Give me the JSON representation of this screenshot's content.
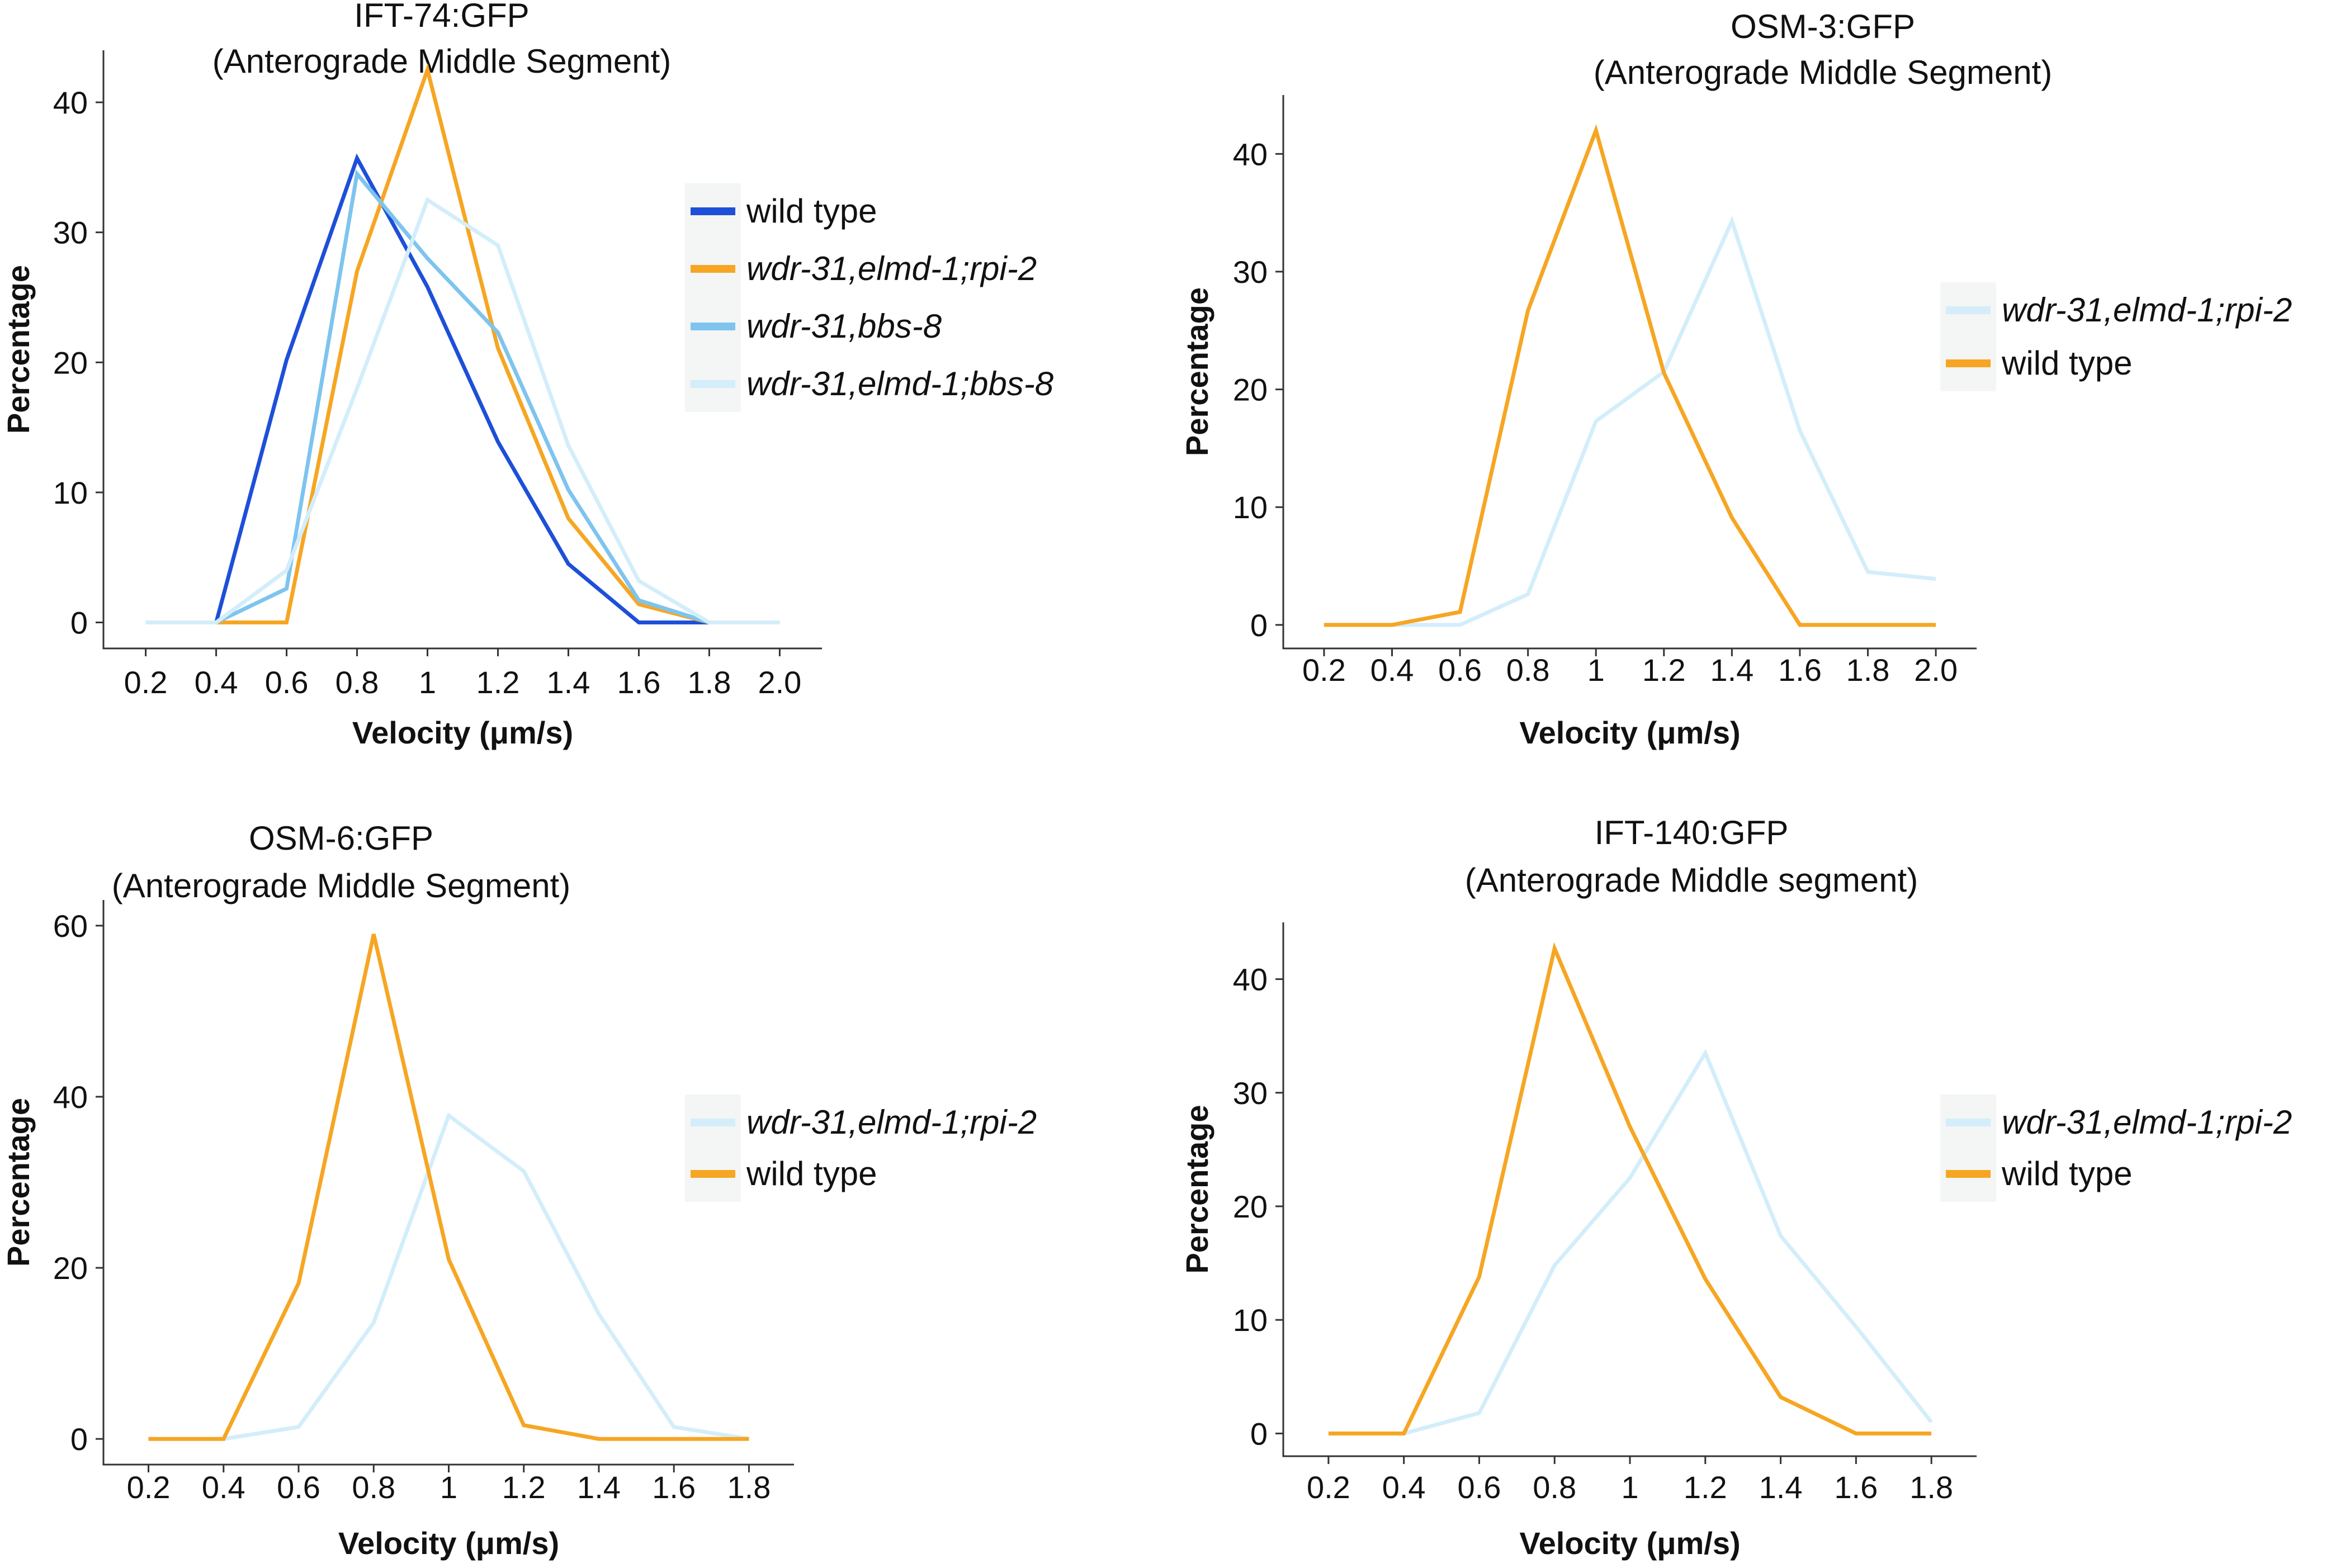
{
  "chart_data": [
    {
      "type": "line",
      "title": "IFT-74:GFP",
      "subtitle": "(Anterograde Middle Segment)",
      "xlabel": "Velocity (μm/s)",
      "ylabel": "Percentage",
      "x_tick_labels": [
        "0.2",
        "0.4",
        "0.6",
        "0.8",
        "1",
        "1.2",
        "1.4",
        "1.6",
        "1.8",
        "2.0"
      ],
      "x": [
        0.2,
        0.4,
        0.6,
        0.8,
        1.0,
        1.2,
        1.4,
        1.6,
        1.8,
        2.0
      ],
      "xlim": [
        0.08,
        2.12
      ],
      "yticks": [
        0,
        10,
        20,
        30,
        40
      ],
      "ylim": [
        -2,
        44
      ],
      "grid": false,
      "legend_position": "right",
      "series": [
        {
          "name": "wild type",
          "color": "#1d4fd8",
          "italic": false,
          "values": [
            0,
            0,
            20.2,
            35.7,
            25.8,
            13.9,
            4.5,
            0,
            0,
            0
          ]
        },
        {
          "name": "wdr-31,elmd-1;rpi-2",
          "color": "#f6a623",
          "italic": true,
          "values": [
            0,
            0,
            0,
            27,
            42.5,
            21.1,
            8,
            1.4,
            0,
            0
          ]
        },
        {
          "name": "wdr-31,bbs-8",
          "color": "#7ec4ee",
          "italic": true,
          "values": [
            0,
            0,
            2.6,
            34.5,
            28,
            22.3,
            10.2,
            1.7,
            0,
            0
          ]
        },
        {
          "name": "wdr-31,elmd-1;bbs-8",
          "color": "#d3eefa",
          "italic": true,
          "values": [
            0,
            0,
            4,
            18,
            32.5,
            29,
            13.6,
            3.2,
            0,
            0
          ]
        }
      ]
    },
    {
      "type": "line",
      "title": "OSM-3:GFP",
      "subtitle": "(Anterograde Middle Segment)",
      "xlabel": "Velocity (μm/s)",
      "ylabel": "Percentage",
      "x_tick_labels": [
        "0.2",
        "0.4",
        "0.6",
        "0.8",
        "1",
        "1.2",
        "1.4",
        "1.6",
        "1.8",
        "2.0"
      ],
      "x": [
        0.2,
        0.4,
        0.6,
        0.8,
        1.0,
        1.2,
        1.4,
        1.6,
        1.8,
        2.0
      ],
      "xlim": [
        0.08,
        2.12
      ],
      "yticks": [
        0,
        10,
        20,
        30,
        40
      ],
      "ylim": [
        -2,
        45
      ],
      "grid": false,
      "legend_position": "right",
      "series": [
        {
          "name": "wdr-31,elmd-1;rpi-2",
          "color": "#d3eefa",
          "italic": true,
          "values": [
            0,
            0,
            0,
            2.6,
            17.3,
            21.5,
            34.3,
            16.5,
            4.5,
            3.9
          ]
        },
        {
          "name": "wild type",
          "color": "#f6a623",
          "italic": false,
          "values": [
            0,
            0,
            1.1,
            26.7,
            42,
            21.4,
            9.1,
            0,
            0,
            0
          ]
        }
      ]
    },
    {
      "type": "line",
      "title": "OSM-6:GFP",
      "subtitle": "(Anterograde Middle Segment)",
      "xlabel": "Velocity (μm/s)",
      "ylabel": "Percentage",
      "x_tick_labels": [
        "0.2",
        "0.4",
        "0.6",
        "0.8",
        "1",
        "1.2",
        "1.4",
        "1.6",
        "1.8"
      ],
      "x": [
        0.2,
        0.4,
        0.6,
        0.8,
        1.0,
        1.2,
        1.4,
        1.6,
        1.8
      ],
      "xlim": [
        0.08,
        1.92
      ],
      "yticks": [
        0,
        20,
        40,
        60
      ],
      "ylim": [
        -3,
        63
      ],
      "grid": false,
      "legend_position": "right",
      "series": [
        {
          "name": "wdr-31,elmd-1;rpi-2",
          "color": "#d3eefa",
          "italic": true,
          "values": [
            0,
            0,
            1.4,
            13.6,
            37.8,
            31.3,
            14.6,
            1.4,
            0
          ]
        },
        {
          "name": "wild type",
          "color": "#f6a623",
          "italic": false,
          "values": [
            0,
            0,
            18.2,
            59,
            21,
            1.6,
            0,
            0,
            0
          ]
        }
      ]
    },
    {
      "type": "line",
      "title": "IFT-140:GFP",
      "subtitle": "(Anterograde Middle segment)",
      "xlabel": "Velocity (μm/s)",
      "ylabel": "Percentage",
      "x_tick_labels": [
        "0.2",
        "0.4",
        "0.6",
        "0.8",
        "1",
        "1.2",
        "1.4",
        "1.6",
        "1.8"
      ],
      "x": [
        0.2,
        0.4,
        0.6,
        0.8,
        1.0,
        1.2,
        1.4,
        1.6,
        1.8
      ],
      "xlim": [
        0.08,
        1.92
      ],
      "yticks": [
        0,
        10,
        20,
        30,
        40
      ],
      "ylim": [
        -2,
        45
      ],
      "grid": false,
      "legend_position": "right",
      "series": [
        {
          "name": "wdr-31,elmd-1;rpi-2",
          "color": "#d3eefa",
          "italic": true,
          "values": [
            0,
            0,
            1.8,
            14.8,
            22.5,
            33.5,
            17.4,
            9.4,
            1
          ]
        },
        {
          "name": "wild type",
          "color": "#f6a623",
          "italic": false,
          "values": [
            0,
            0,
            13.8,
            42.7,
            27,
            13.6,
            3.2,
            0,
            0
          ]
        }
      ]
    }
  ]
}
